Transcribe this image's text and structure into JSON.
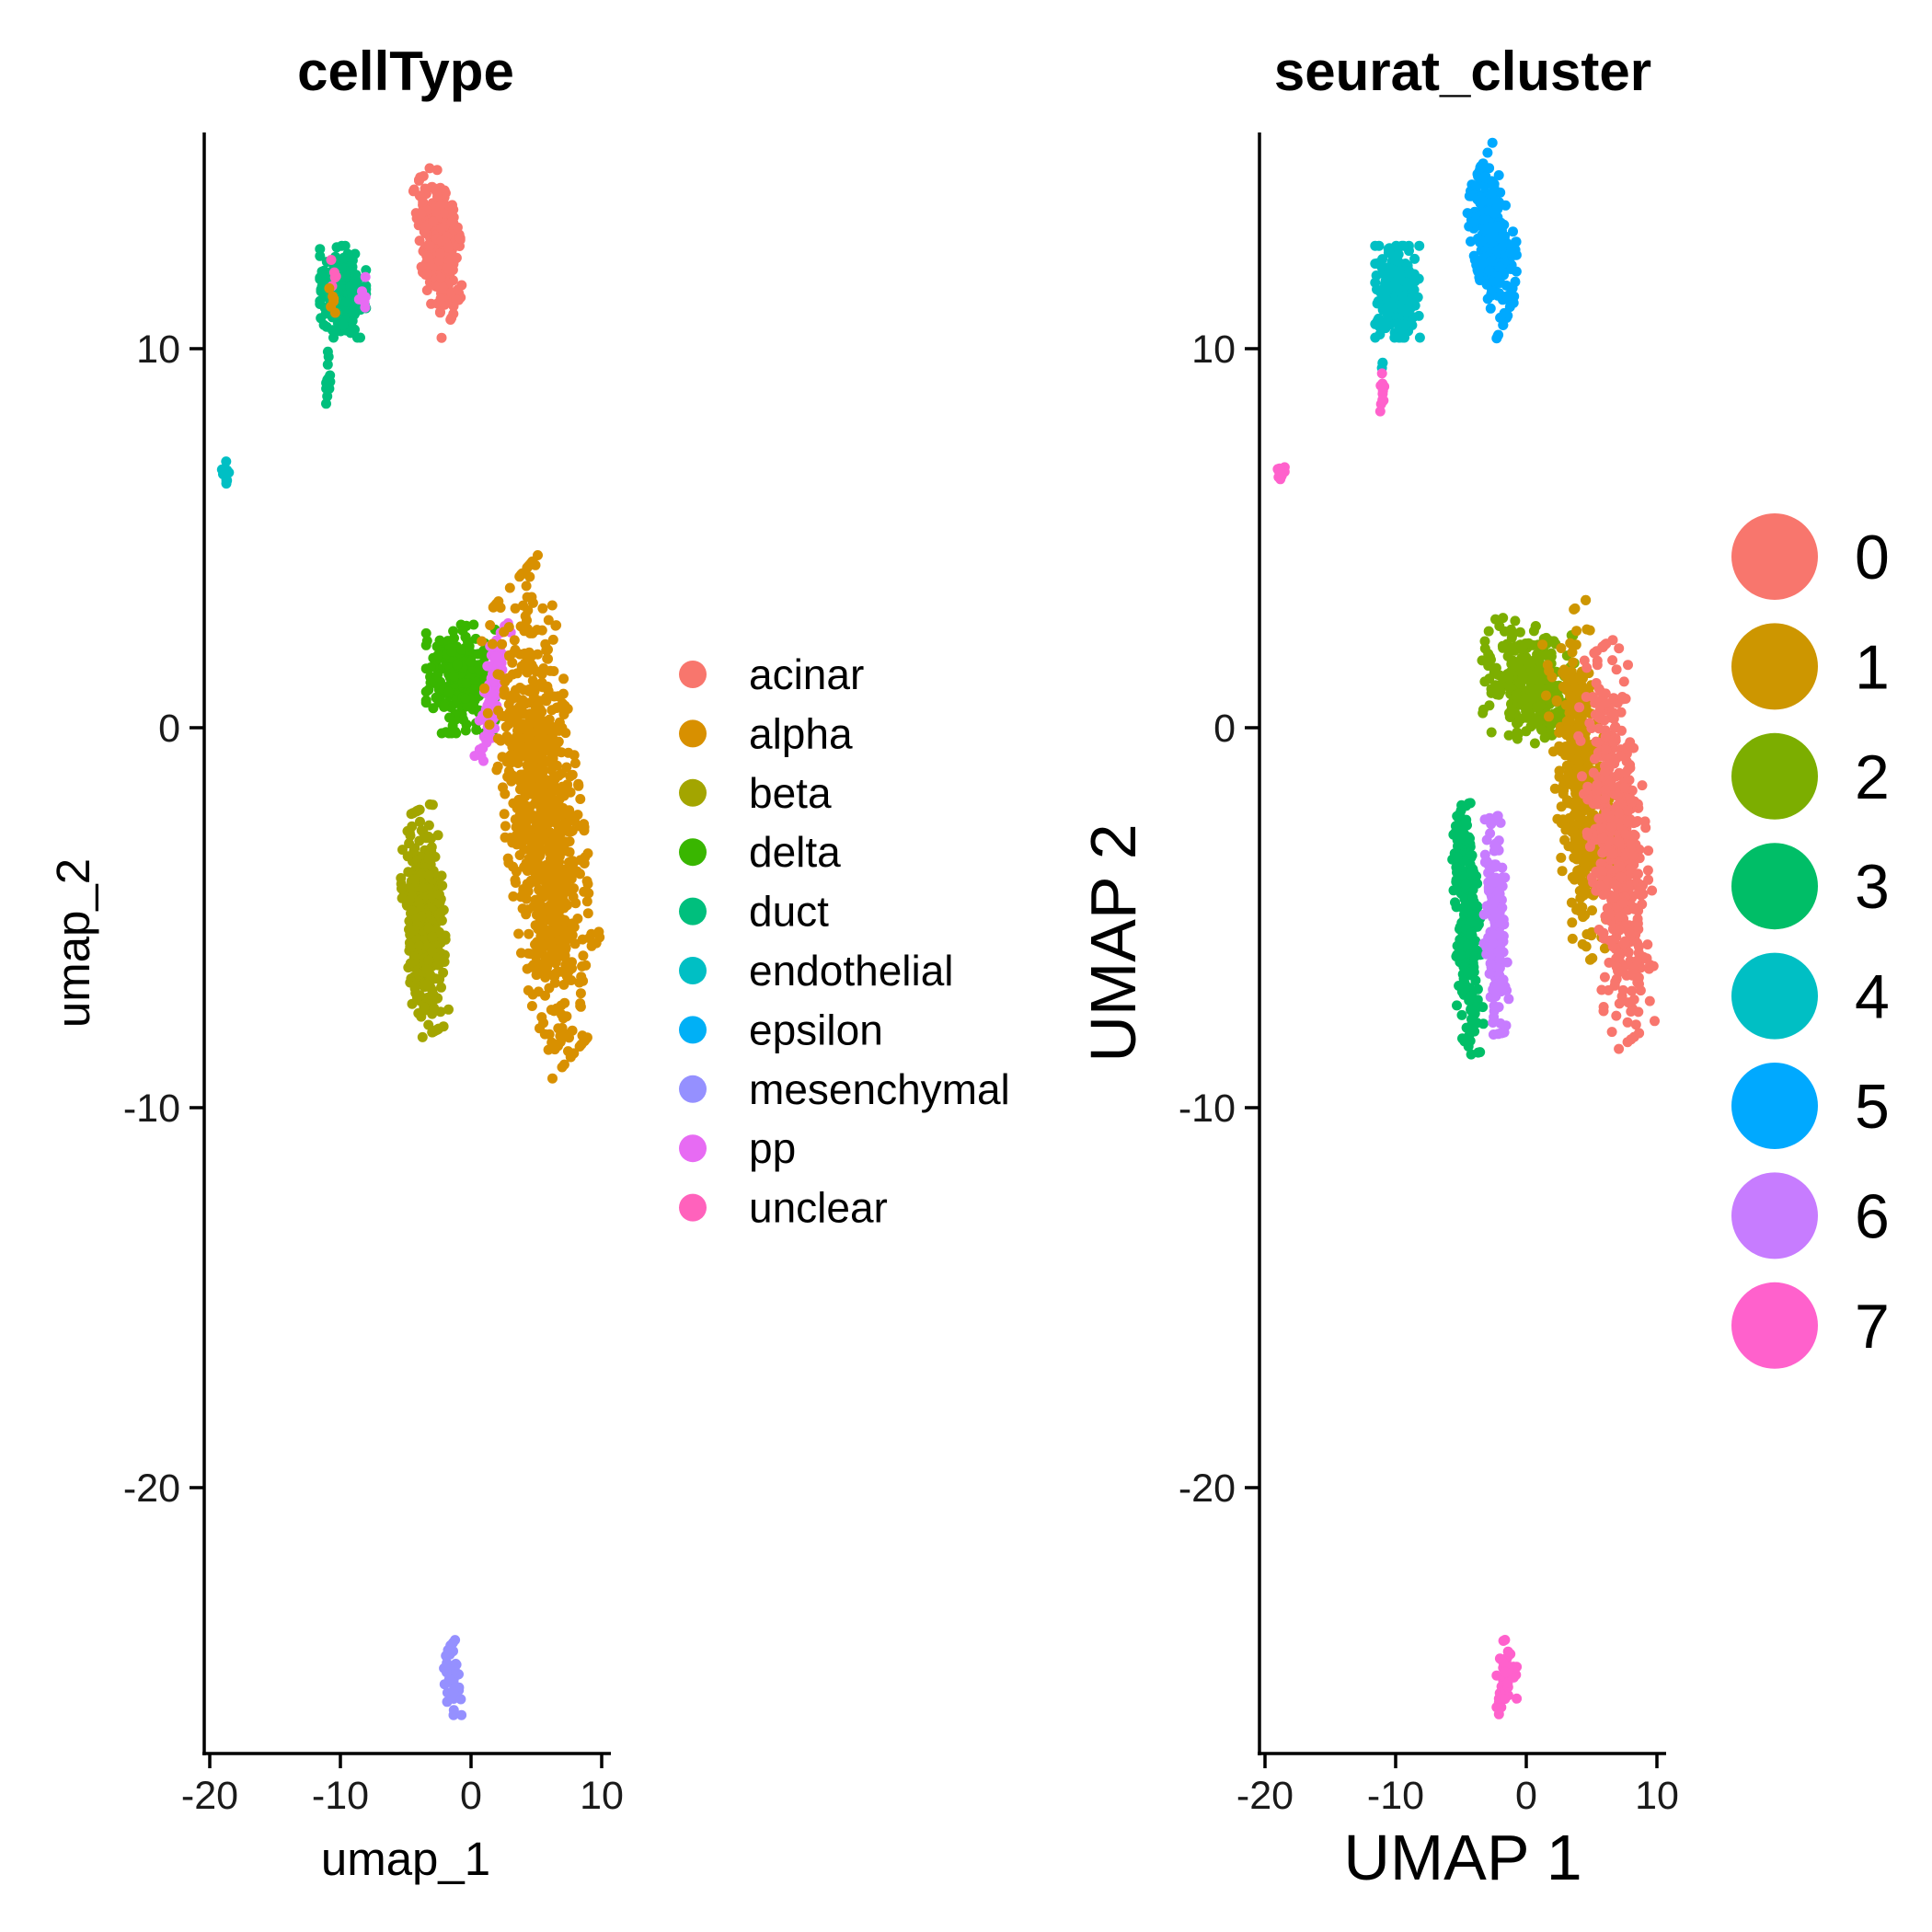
{
  "chart_data": [
    {
      "type": "scatter",
      "title": "cellType",
      "xlabel": "umap_1",
      "ylabel": "umap_2",
      "xlim": [
        -20,
        10
      ],
      "ylim": [
        -27,
        15.5
      ],
      "xticks": [
        -20,
        -10,
        0,
        10
      ],
      "yticks": [
        -20,
        -10,
        0,
        10
      ],
      "grid": false,
      "legend_position": "right",
      "legend": [
        {
          "name": "acinar",
          "color": "#F8766D"
        },
        {
          "name": "alpha",
          "color": "#D89000"
        },
        {
          "name": "beta",
          "color": "#A3A500"
        },
        {
          "name": "delta",
          "color": "#39B600"
        },
        {
          "name": "duct",
          "color": "#00BF7D"
        },
        {
          "name": "endothelial",
          "color": "#00BFC4"
        },
        {
          "name": "epsilon",
          "color": "#00B0F6"
        },
        {
          "name": "mesenchymal",
          "color": "#9590FF"
        },
        {
          "name": "pp",
          "color": "#E76BF3"
        },
        {
          "name": "unclear",
          "color": "#FF62BC"
        }
      ],
      "clusters": [
        {
          "group": "acinar",
          "cx": -2.5,
          "cy": 12.8,
          "sx": 1.0,
          "sy": 0.65,
          "angle": -55,
          "n": 320
        },
        {
          "group": "duct",
          "cx": -9.8,
          "cy": 11.5,
          "sx": 0.8,
          "sy": 0.55,
          "angle": 0,
          "n": 260
        },
        {
          "group": "duct",
          "cx": -11.0,
          "cy": 9.0,
          "sx": 0.12,
          "sy": 0.35,
          "angle": 0,
          "n": 12
        },
        {
          "group": "duct",
          "cx": -11.0,
          "cy": 9.7,
          "sx": 0.08,
          "sy": 0.1,
          "angle": 0,
          "n": 3
        },
        {
          "group": "endothelial",
          "cx": -18.8,
          "cy": 6.7,
          "sx": 0.15,
          "sy": 0.15,
          "angle": 0,
          "n": 12
        },
        {
          "group": "unclear",
          "cx": -10.5,
          "cy": 12.0,
          "sx": 0.25,
          "sy": 0.3,
          "angle": 0,
          "n": 5
        },
        {
          "group": "pp",
          "cx": -8.3,
          "cy": 11.4,
          "sx": 0.3,
          "sy": 0.25,
          "angle": 0,
          "n": 6
        },
        {
          "group": "alpha",
          "cx": -10.6,
          "cy": 11.1,
          "sx": 0.2,
          "sy": 0.3,
          "angle": 0,
          "n": 6
        },
        {
          "group": "delta",
          "cx": -0.8,
          "cy": 1.3,
          "sx": 1.2,
          "sy": 0.65,
          "angle": 0,
          "n": 260
        },
        {
          "group": "pp",
          "cx": 1.6,
          "cy": 1.0,
          "sx": 0.3,
          "sy": 1.1,
          "angle": -25,
          "n": 110
        },
        {
          "group": "alpha",
          "cx": 5.5,
          "cy": -2.4,
          "sx": 1.3,
          "sy": 3.0,
          "angle": 22,
          "n": 950
        },
        {
          "group": "beta",
          "cx": -3.6,
          "cy": -5.1,
          "sx": 0.7,
          "sy": 1.35,
          "angle": 10,
          "n": 420
        },
        {
          "group": "mesenchymal",
          "cx": -1.5,
          "cy": -25.0,
          "sx": 0.35,
          "sy": 0.45,
          "angle": 0,
          "n": 45
        }
      ]
    },
    {
      "type": "scatter",
      "title": "seurat_cluster",
      "xlabel": "UMAP 1",
      "ylabel": "UMAP 2",
      "xlim": [
        -20,
        10
      ],
      "ylim": [
        -27,
        15.5
      ],
      "xticks": [
        -20,
        -10,
        0,
        10
      ],
      "yticks": [
        -20,
        -10,
        0,
        10
      ],
      "grid": false,
      "legend_position": "right",
      "legend": [
        {
          "name": "0",
          "color": "#F8766D"
        },
        {
          "name": "1",
          "color": "#CD9600"
        },
        {
          "name": "2",
          "color": "#7CAE00"
        },
        {
          "name": "3",
          "color": "#00BE67"
        },
        {
          "name": "4",
          "color": "#00BFC4"
        },
        {
          "name": "5",
          "color": "#00A9FF"
        },
        {
          "name": "6",
          "color": "#C77CFF"
        },
        {
          "name": "7",
          "color": "#FF61CC"
        }
      ],
      "clusters": [
        {
          "group": "5",
          "cx": -2.5,
          "cy": 12.8,
          "sx": 1.0,
          "sy": 0.65,
          "angle": -55,
          "n": 320
        },
        {
          "group": "4",
          "cx": -9.8,
          "cy": 11.5,
          "sx": 0.8,
          "sy": 0.55,
          "angle": 0,
          "n": 270
        },
        {
          "group": "4",
          "cx": -11.0,
          "cy": 9.7,
          "sx": 0.08,
          "sy": 0.1,
          "angle": 0,
          "n": 3
        },
        {
          "group": "7",
          "cx": -11.0,
          "cy": 8.9,
          "sx": 0.12,
          "sy": 0.25,
          "angle": 0,
          "n": 10
        },
        {
          "group": "7",
          "cx": -18.8,
          "cy": 6.7,
          "sx": 0.15,
          "sy": 0.15,
          "angle": 0,
          "n": 12
        },
        {
          "group": "2",
          "cx": 0.1,
          "cy": 1.2,
          "sx": 1.6,
          "sy": 0.7,
          "angle": -5,
          "n": 330
        },
        {
          "group": "1",
          "cx": 4.2,
          "cy": -1.5,
          "sx": 0.9,
          "sy": 2.1,
          "angle": 15,
          "n": 430
        },
        {
          "group": "0",
          "cx": 7.0,
          "cy": -3.0,
          "sx": 1.0,
          "sy": 2.4,
          "angle": 15,
          "n": 520
        },
        {
          "group": "3",
          "cx": -4.5,
          "cy": -5.3,
          "sx": 0.45,
          "sy": 1.5,
          "angle": 5,
          "n": 260
        },
        {
          "group": "6",
          "cx": -2.4,
          "cy": -5.2,
          "sx": 0.4,
          "sy": 1.3,
          "angle": 5,
          "n": 170
        },
        {
          "group": "7",
          "cx": -1.5,
          "cy": -25.0,
          "sx": 0.35,
          "sy": 0.45,
          "angle": 0,
          "n": 45
        }
      ]
    }
  ]
}
